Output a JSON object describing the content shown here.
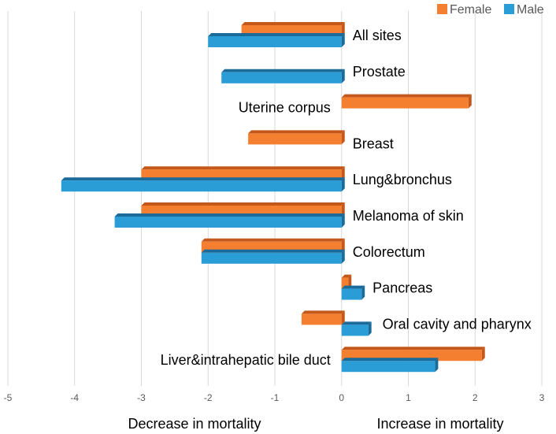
{
  "chart_data": {
    "type": "bar",
    "orientation": "horizontal",
    "categories": [
      "All sites",
      "Prostate",
      "Uterine corpus",
      "Breast",
      "Lung&bronchus",
      "Melanoma of skin",
      "Colorectum",
      "Pancreas",
      "Oral cavity and pharynx",
      "Liver&intrahepatic bile duct"
    ],
    "series": [
      {
        "name": "Female",
        "color": "#F47F30",
        "sideColor": "#C4581A",
        "values": [
          -1.5,
          null,
          1.9,
          -1.4,
          -3.0,
          -3.0,
          -2.1,
          0.1,
          -0.6,
          2.1
        ]
      },
      {
        "name": "Male",
        "color": "#2B9DD6",
        "sideColor": "#1A6A9A",
        "values": [
          -2.0,
          -1.8,
          null,
          null,
          -4.2,
          -3.4,
          -2.1,
          0.3,
          0.4,
          1.4
        ]
      }
    ],
    "xlim": [
      -5,
      3
    ],
    "xticks": [
      "-5",
      "-4",
      "-3",
      "-2",
      "-1",
      "0",
      "1",
      "2",
      "3"
    ],
    "xlabel_left": "Decrease in mortality",
    "xlabel_right": "Increase in mortality",
    "legend_position": "top-right",
    "grid": "vertical"
  }
}
